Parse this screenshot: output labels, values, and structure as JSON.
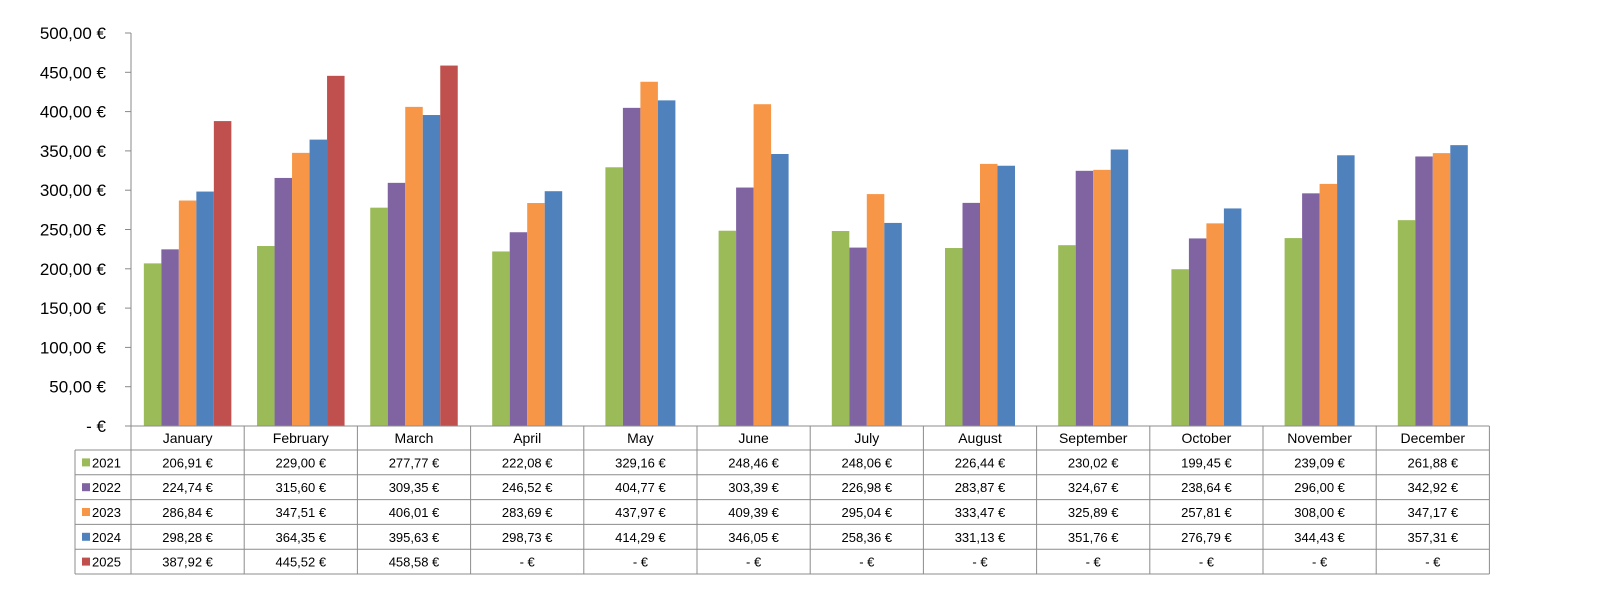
{
  "chart_data": {
    "type": "bar",
    "categories": [
      "January",
      "February",
      "March",
      "April",
      "May",
      "June",
      "July",
      "August",
      "September",
      "October",
      "November",
      "December"
    ],
    "y_ticks": [
      "-  €",
      "50,00 €",
      "100,00 €",
      "150,00 €",
      "200,00 €",
      "250,00 €",
      "300,00 €",
      "350,00 €",
      "400,00 €",
      "450,00 €",
      "500,00 €"
    ],
    "ylim": [
      0,
      500
    ],
    "grid": false,
    "legend": "data-table",
    "colors": {
      "2021": "#9bbb59",
      "2022": "#8064a2",
      "2023": "#f79646",
      "2024": "#4f81bd",
      "2025": "#c0504d"
    },
    "series": [
      {
        "name": "2021",
        "values": [
          206.91,
          229.0,
          277.77,
          222.08,
          329.16,
          248.46,
          248.06,
          226.44,
          230.02,
          199.45,
          239.09,
          261.88
        ],
        "labels": [
          "206,91 €",
          "229,00 €",
          "277,77 €",
          "222,08 €",
          "329,16 €",
          "248,46 €",
          "248,06 €",
          "226,44 €",
          "230,02 €",
          "199,45 €",
          "239,09 €",
          "261,88 €"
        ]
      },
      {
        "name": "2022",
        "values": [
          224.74,
          315.6,
          309.35,
          246.52,
          404.77,
          303.39,
          226.98,
          283.87,
          324.67,
          238.64,
          296.0,
          342.92
        ],
        "labels": [
          "224,74 €",
          "315,60 €",
          "309,35 €",
          "246,52 €",
          "404,77 €",
          "303,39 €",
          "226,98 €",
          "283,87 €",
          "324,67 €",
          "238,64 €",
          "296,00 €",
          "342,92 €"
        ]
      },
      {
        "name": "2023",
        "values": [
          286.84,
          347.51,
          406.01,
          283.69,
          437.97,
          409.39,
          295.04,
          333.47,
          325.89,
          257.81,
          308.0,
          347.17
        ],
        "labels": [
          "286,84 €",
          "347,51 €",
          "406,01 €",
          "283,69 €",
          "437,97 €",
          "409,39 €",
          "295,04 €",
          "333,47 €",
          "325,89 €",
          "257,81 €",
          "308,00 €",
          "347,17 €"
        ]
      },
      {
        "name": "2024",
        "values": [
          298.28,
          364.35,
          395.63,
          298.73,
          414.29,
          346.05,
          258.36,
          331.13,
          351.76,
          276.79,
          344.43,
          357.31
        ],
        "labels": [
          "298,28 €",
          "364,35 €",
          "395,63 €",
          "298,73 €",
          "414,29 €",
          "346,05 €",
          "258,36 €",
          "331,13 €",
          "351,76 €",
          "276,79 €",
          "344,43 €",
          "357,31 €"
        ]
      },
      {
        "name": "2025",
        "values": [
          387.92,
          445.52,
          458.58,
          null,
          null,
          null,
          null,
          null,
          null,
          null,
          null,
          null
        ],
        "labels": [
          "387,92 €",
          "445,52 €",
          "458,58 €",
          "-  €",
          "-  €",
          "-  €",
          "-  €",
          "-  €",
          "-  €",
          "-  €",
          "-  €",
          "-  €"
        ]
      }
    ]
  }
}
